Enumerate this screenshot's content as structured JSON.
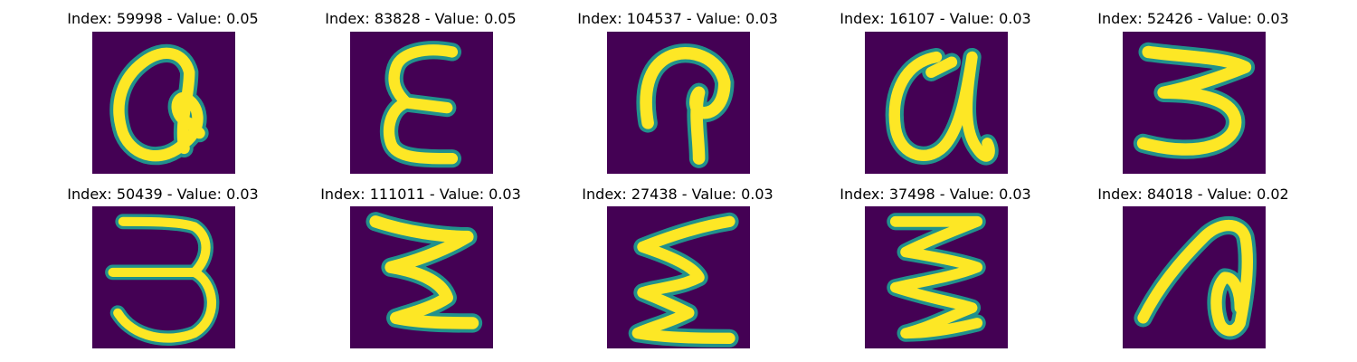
{
  "colors": {
    "background": "#440154",
    "stroke": "#fde725",
    "halo": "#21918c",
    "mid": "#5ec962"
  },
  "panels": [
    {
      "title": "Index: 59998 - Value: 0.05",
      "index": 59998,
      "value": 0.05
    },
    {
      "title": "Index: 83828 - Value: 0.05",
      "index": 83828,
      "value": 0.05
    },
    {
      "title": "Index: 104537 - Value: 0.03",
      "index": 104537,
      "value": 0.03
    },
    {
      "title": "Index: 16107 - Value: 0.03",
      "index": 16107,
      "value": 0.03
    },
    {
      "title": "Index: 52426 - Value: 0.03",
      "index": 52426,
      "value": 0.03
    },
    {
      "title": "Index: 50439 - Value: 0.03",
      "index": 50439,
      "value": 0.03
    },
    {
      "title": "Index: 111011 - Value: 0.03",
      "index": 111011,
      "value": 0.03
    },
    {
      "title": "Index: 27438 - Value: 0.03",
      "index": 27438,
      "value": 0.03
    },
    {
      "title": "Index: 37498 - Value: 0.03",
      "index": 37498,
      "value": 0.03
    },
    {
      "title": "Index: 84018 - Value: 0.02",
      "index": 84018,
      "value": 0.02
    }
  ]
}
